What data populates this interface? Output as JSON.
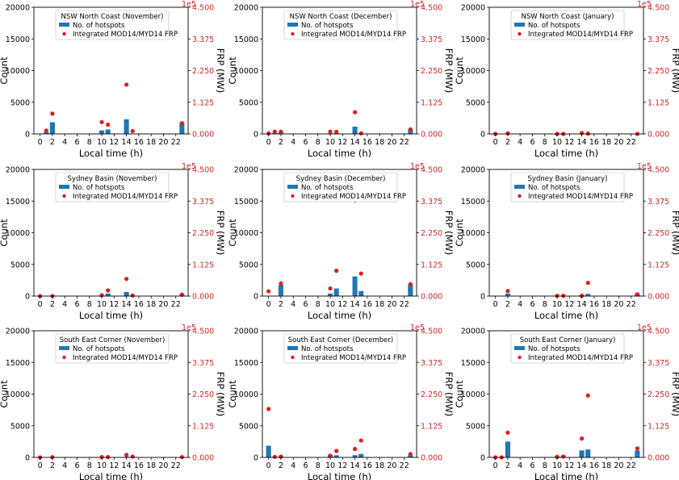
{
  "colors": {
    "bar": "#1f77b4",
    "frp": "#e41a1c",
    "right_axis": "#d62728",
    "axes": "#000000"
  },
  "legend": {
    "bar_label": "No. of hotspots",
    "frp_label": "Integrated MOD14/MYD14 FRP"
  },
  "chart_data": [
    {
      "type": "bar",
      "title": "NSW North Coast (November)",
      "xlabel": "Local time (h)",
      "ylabel": "Count",
      "y2label": "FRP (MW)",
      "y2_offset": "1e5",
      "xticks": [
        0,
        2,
        4,
        6,
        8,
        10,
        12,
        14,
        16,
        18,
        20,
        22
      ],
      "yticks": [
        "0",
        "5000",
        "10000",
        "15000",
        "20000"
      ],
      "y2ticks": [
        "0.000",
        "1.125",
        "2.250",
        "3.375",
        "4.500"
      ],
      "ylim": [
        0,
        20000
      ],
      "y2lim": [
        0,
        4.5
      ],
      "xlim": [
        -1,
        24
      ],
      "hotspots": [
        [
          1,
          300
        ],
        [
          2,
          1850
        ],
        [
          10,
          550
        ],
        [
          11,
          700
        ],
        [
          14,
          2300
        ],
        [
          23,
          1700
        ]
      ],
      "frp": [
        [
          1,
          0.12
        ],
        [
          2,
          0.72
        ],
        [
          10,
          0.42
        ],
        [
          11,
          0.33
        ],
        [
          14,
          1.75
        ],
        [
          15,
          0.1
        ],
        [
          23,
          0.38
        ]
      ]
    },
    {
      "type": "bar",
      "title": "NSW North Coast (December)",
      "xlabel": "Local time (h)",
      "ylabel": "Count",
      "y2label": "FRP (MW)",
      "y2_offset": "1e5",
      "xticks": [
        0,
        2,
        4,
        6,
        8,
        10,
        12,
        14,
        16,
        18,
        20,
        22
      ],
      "yticks": [
        "0",
        "5000",
        "10000",
        "15000",
        "20000"
      ],
      "y2ticks": [
        "0.000",
        "1.125",
        "2.250",
        "3.375",
        "4.500"
      ],
      "ylim": [
        0,
        20000
      ],
      "y2lim": [
        0,
        4.5
      ],
      "xlim": [
        -1,
        24
      ],
      "hotspots": [
        [
          1,
          150
        ],
        [
          2,
          250
        ],
        [
          10,
          100
        ],
        [
          11,
          150
        ],
        [
          14,
          1150
        ],
        [
          23,
          700
        ]
      ],
      "frp": [
        [
          0,
          0.02
        ],
        [
          1,
          0.08
        ],
        [
          2,
          0.08
        ],
        [
          10,
          0.08
        ],
        [
          11,
          0.08
        ],
        [
          14,
          0.77
        ],
        [
          15,
          0.02
        ],
        [
          23,
          0.16
        ]
      ]
    },
    {
      "type": "bar",
      "title": "NSW North Coast (January)",
      "xlabel": "Local time (h)",
      "ylabel": "Count",
      "y2label": "FRP (MW)",
      "y2_offset": "1e5",
      "xticks": [
        0,
        2,
        4,
        6,
        8,
        10,
        12,
        14,
        16,
        18,
        20,
        22
      ],
      "yticks": [
        "0",
        "5000",
        "10000",
        "15000",
        "20000"
      ],
      "y2ticks": [
        "0.000",
        "1.125",
        "2.250",
        "3.375",
        "4.500"
      ],
      "ylim": [
        0,
        20000
      ],
      "y2lim": [
        0,
        4.5
      ],
      "xlim": [
        -1,
        24
      ],
      "hotspots": [
        [
          2,
          50
        ],
        [
          14,
          30
        ]
      ],
      "frp": [
        [
          0,
          0
        ],
        [
          2,
          0.02
        ],
        [
          10,
          0
        ],
        [
          11,
          0
        ],
        [
          14,
          0.03
        ],
        [
          15,
          0.01
        ],
        [
          23,
          0
        ]
      ]
    },
    {
      "type": "bar",
      "title": "Sydney Basin (November)",
      "xlabel": "Local time (h)",
      "ylabel": "Count",
      "y2label": "FRP (MW)",
      "y2_offset": "1e5",
      "xticks": [
        0,
        2,
        4,
        6,
        8,
        10,
        12,
        14,
        16,
        18,
        20,
        22
      ],
      "yticks": [
        "0",
        "5000",
        "10000",
        "15000",
        "20000"
      ],
      "y2ticks": [
        "0.000",
        "1.125",
        "2.250",
        "3.375",
        "4.500"
      ],
      "ylim": [
        0,
        20000
      ],
      "y2lim": [
        0,
        4.5
      ],
      "xlim": [
        -1,
        24
      ],
      "hotspots": [
        [
          11,
          400
        ],
        [
          14,
          650
        ],
        [
          23,
          300
        ]
      ],
      "frp": [
        [
          0,
          0
        ],
        [
          2,
          0
        ],
        [
          10,
          0.03
        ],
        [
          11,
          0.2
        ],
        [
          14,
          0.61
        ],
        [
          15,
          0.02
        ],
        [
          23,
          0.05
        ]
      ]
    },
    {
      "type": "bar",
      "title": "Sydney Basin (December)",
      "xlabel": "Local time (h)",
      "ylabel": "Count",
      "y2label": "FRP (MW)",
      "y2_offset": "1e5",
      "xticks": [
        0,
        2,
        4,
        6,
        8,
        10,
        12,
        14,
        16,
        18,
        20,
        22
      ],
      "yticks": [
        "0",
        "5000",
        "10000",
        "15000",
        "20000"
      ],
      "y2ticks": [
        "0.000",
        "1.125",
        "2.250",
        "3.375",
        "4.500"
      ],
      "ylim": [
        0,
        20000
      ],
      "y2lim": [
        0,
        4.5
      ],
      "xlim": [
        -1,
        24
      ],
      "hotspots": [
        [
          2,
          1750
        ],
        [
          10,
          400
        ],
        [
          11,
          1200
        ],
        [
          14,
          3100
        ],
        [
          15,
          800
        ],
        [
          23,
          1850
        ]
      ],
      "frp": [
        [
          0,
          0.17
        ],
        [
          2,
          0.45
        ],
        [
          10,
          0.27
        ],
        [
          11,
          0.9
        ],
        [
          14,
          3.4
        ],
        [
          15,
          0.8
        ],
        [
          23,
          0.42
        ]
      ]
    },
    {
      "type": "bar",
      "title": "Sydney Basin (January)",
      "xlabel": "Local time (h)",
      "ylabel": "Count",
      "y2label": "FRP (MW)",
      "y2_offset": "1e5",
      "xticks": [
        0,
        2,
        4,
        6,
        8,
        10,
        12,
        14,
        16,
        18,
        20,
        22
      ],
      "yticks": [
        "0",
        "5000",
        "10000",
        "15000",
        "20000"
      ],
      "y2ticks": [
        "0.000",
        "1.125",
        "2.250",
        "3.375",
        "4.500"
      ],
      "ylim": [
        0,
        20000
      ],
      "y2lim": [
        0,
        4.5
      ],
      "xlim": [
        -1,
        24
      ],
      "hotspots": [
        [
          2,
          400
        ],
        [
          14,
          150
        ],
        [
          15,
          350
        ],
        [
          23,
          350
        ]
      ],
      "frp": [
        [
          2,
          0.18
        ],
        [
          10,
          0.01
        ],
        [
          11,
          0.01
        ],
        [
          14,
          0.01
        ],
        [
          15,
          0.47
        ],
        [
          23,
          0.06
        ]
      ]
    },
    {
      "type": "bar",
      "title": "South East Corner (November)",
      "xlabel": "Local time (h)",
      "ylabel": "Count",
      "y2label": "FRP (MW)",
      "y2_offset": "1e5",
      "xticks": [
        0,
        2,
        4,
        6,
        8,
        10,
        12,
        14,
        16,
        18,
        20,
        22
      ],
      "yticks": [
        "0",
        "5000",
        "10000",
        "15000",
        "20000"
      ],
      "y2ticks": [
        "0.000",
        "1.125",
        "2.250",
        "3.375",
        "4.500"
      ],
      "ylim": [
        0,
        20000
      ],
      "y2lim": [
        0,
        4.5
      ],
      "xlim": [
        -1,
        24
      ],
      "hotspots": [
        [
          14,
          100
        ]
      ],
      "frp": [
        [
          0,
          0
        ],
        [
          2,
          0.01
        ],
        [
          10,
          0.01
        ],
        [
          11,
          0.01
        ],
        [
          14,
          0.09
        ],
        [
          15,
          0.03
        ],
        [
          23,
          0.01
        ]
      ]
    },
    {
      "type": "bar",
      "title": "South East Corner (December)",
      "xlabel": "Local time (h)",
      "ylabel": "Count",
      "y2label": "FRP (MW)",
      "y2_offset": "1e5",
      "xticks": [
        0,
        2,
        4,
        6,
        8,
        10,
        12,
        14,
        16,
        18,
        20,
        22
      ],
      "yticks": [
        "0",
        "5000",
        "10000",
        "15000",
        "20000"
      ],
      "y2ticks": [
        "0.000",
        "1.125",
        "2.250",
        "3.375",
        "4.500"
      ],
      "ylim": [
        0,
        20000
      ],
      "y2lim": [
        0,
        4.5
      ],
      "xlim": [
        -1,
        24
      ],
      "hotspots": [
        [
          0,
          1850
        ],
        [
          2,
          150
        ],
        [
          10,
          450
        ],
        [
          11,
          350
        ],
        [
          14,
          350
        ],
        [
          15,
          550
        ],
        [
          23,
          350
        ]
      ],
      "frp": [
        [
          0,
          1.72
        ],
        [
          1,
          0.02
        ],
        [
          2,
          0.03
        ],
        [
          10,
          0.06
        ],
        [
          11,
          0.23
        ],
        [
          14,
          0.3
        ],
        [
          15,
          0.6
        ],
        [
          23,
          0.12
        ]
      ]
    },
    {
      "type": "bar",
      "title": "South East Corner (January)",
      "xlabel": "Local time (h)",
      "ylabel": "Count",
      "y2label": "FRP (MW)",
      "y2_offset": "1e5",
      "xticks": [
        0,
        2,
        4,
        6,
        8,
        10,
        12,
        14,
        16,
        18,
        20,
        22
      ],
      "yticks": [
        "0",
        "5000",
        "10000",
        "15000",
        "20000"
      ],
      "y2ticks": [
        "0.000",
        "1.125",
        "2.250",
        "3.375",
        "4.500"
      ],
      "ylim": [
        0,
        20000
      ],
      "y2lim": [
        0,
        4.5
      ],
      "xlim": [
        -1,
        24
      ],
      "hotspots": [
        [
          2,
          2500
        ],
        [
          10,
          200
        ],
        [
          11,
          300
        ],
        [
          14,
          1100
        ],
        [
          15,
          1250
        ],
        [
          23,
          1100
        ]
      ],
      "frp": [
        [
          0,
          0
        ],
        [
          1,
          0
        ],
        [
          2,
          0.88
        ],
        [
          10,
          0.02
        ],
        [
          11,
          0.03
        ],
        [
          14,
          0.67
        ],
        [
          15,
          2.2
        ],
        [
          23,
          0.32
        ]
      ]
    }
  ]
}
